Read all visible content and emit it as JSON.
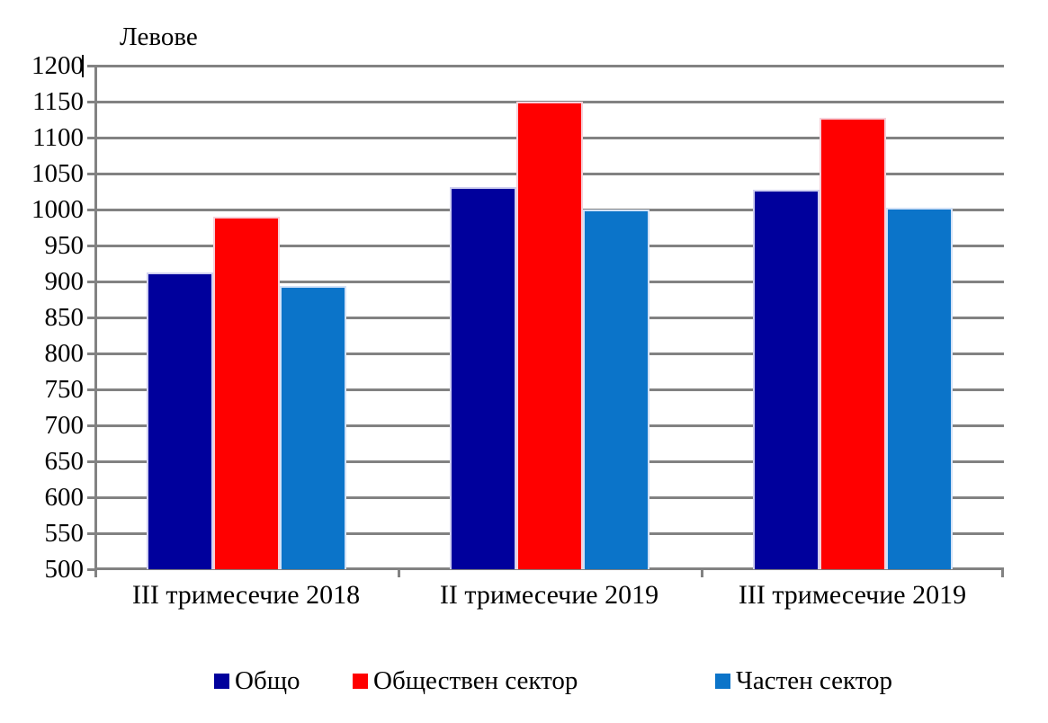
{
  "axis_title": "Левове",
  "colors": {
    "grid": "#828282",
    "axis": "#828282",
    "text": "#000000",
    "background": "#ffffff"
  },
  "chart_data": {
    "type": "bar",
    "title": "Левове",
    "ylabel": "Левове",
    "xlabel": "",
    "categories": [
      "III тримесечие 2018",
      "II тримесечие 2019",
      "III тримесечие 2019"
    ],
    "series": [
      {
        "name": "Общо",
        "color": "#00009C",
        "values": [
          913,
          1031,
          1027
        ]
      },
      {
        "name": "Обществен сектор",
        "color": "#FF0000",
        "values": [
          990,
          1150,
          1128
        ]
      },
      {
        "name": "Частен сектор",
        "color": "#0B74C9",
        "values": [
          894,
          1000,
          1002
        ]
      }
    ],
    "ylim": [
      500,
      1200
    ],
    "ytick_step": 50,
    "yticks": [
      500,
      550,
      600,
      650,
      700,
      750,
      800,
      850,
      900,
      950,
      1000,
      1050,
      1100,
      1150,
      1200
    ],
    "grid": true,
    "legend_position": "bottom"
  }
}
